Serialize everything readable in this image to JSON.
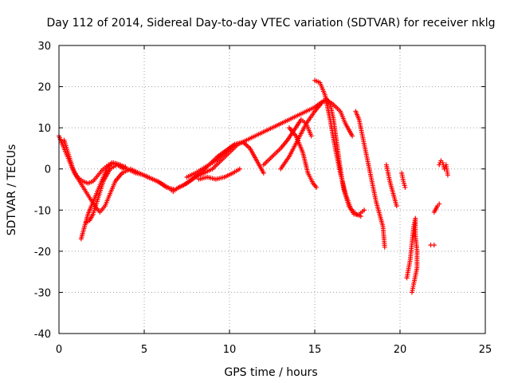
{
  "chart_data": {
    "type": "scatter",
    "title": "Day 112 of 2014, Sidereal Day-to-day VTEC variation (SDTVAR) for receiver nklg",
    "xlabel": "GPS time / hours",
    "ylabel": "SDTVAR / TECUs",
    "xlim": [
      0,
      25
    ],
    "ylim": [
      -40,
      30
    ],
    "xticks": [
      "0",
      "5",
      "10",
      "15",
      "20",
      "25"
    ],
    "yticks": [
      "-40",
      "-30",
      "-20",
      "-10",
      "0",
      "10",
      "20",
      "30"
    ],
    "xtick_values": [
      0,
      5,
      10,
      15,
      20,
      25
    ],
    "ytick_values": [
      -40,
      -30,
      -20,
      -10,
      0,
      10,
      20,
      30
    ],
    "grid": true,
    "marker": "plus",
    "color": "#ff0000",
    "series_tracks": [
      [
        [
          0.0,
          8
        ],
        [
          0.2,
          6
        ],
        [
          0.5,
          3
        ],
        [
          0.8,
          0
        ],
        [
          1.1,
          -2
        ],
        [
          1.4,
          -3
        ],
        [
          1.7,
          -3.5
        ],
        [
          2.0,
          -3
        ],
        [
          2.3,
          -1.5
        ],
        [
          2.6,
          0
        ],
        [
          2.9,
          1
        ],
        [
          3.2,
          1.5
        ],
        [
          3.6,
          1
        ],
        [
          4.0,
          0
        ],
        [
          4.5,
          -1
        ],
        [
          5.0,
          -1.5
        ],
        [
          5.5,
          -2.5
        ],
        [
          6.0,
          -3.5
        ],
        [
          6.4,
          -4.5
        ],
        [
          6.7,
          -5.5
        ],
        [
          7.0,
          -4.5
        ],
        [
          7.5,
          -3.5
        ],
        [
          8.0,
          -2
        ],
        [
          8.5,
          -1
        ],
        [
          9.0,
          0
        ],
        [
          9.5,
          2
        ],
        [
          10.0,
          4
        ],
        [
          10.5,
          6
        ],
        [
          11.0,
          7
        ],
        [
          11.5,
          8
        ],
        [
          12.0,
          9
        ],
        [
          12.5,
          10
        ],
        [
          13.0,
          11
        ],
        [
          13.5,
          12
        ],
        [
          14.0,
          13
        ],
        [
          14.5,
          14
        ],
        [
          15.0,
          15
        ],
        [
          15.5,
          16.5
        ],
        [
          16.0,
          16
        ],
        [
          16.5,
          14
        ],
        [
          16.8,
          11
        ],
        [
          17.2,
          8
        ]
      ],
      [
        [
          0.3,
          7
        ],
        [
          0.6,
          3
        ],
        [
          0.9,
          -1
        ],
        [
          1.2,
          -3
        ],
        [
          1.5,
          -5
        ],
        [
          1.8,
          -7
        ],
        [
          2.1,
          -9
        ],
        [
          2.4,
          -10.5
        ],
        [
          2.7,
          -9
        ],
        [
          3.0,
          -6
        ],
        [
          3.3,
          -3
        ],
        [
          3.7,
          -1
        ],
        [
          4.2,
          0
        ],
        [
          4.7,
          -1
        ],
        [
          5.2,
          -2
        ],
        [
          5.8,
          -3
        ],
        [
          6.3,
          -4.5
        ],
        [
          6.8,
          -5
        ],
        [
          7.3,
          -4
        ],
        [
          7.8,
          -2.5
        ],
        [
          8.3,
          -1
        ],
        [
          8.8,
          1
        ],
        [
          9.3,
          3
        ],
        [
          9.8,
          4.5
        ],
        [
          10.3,
          6
        ],
        [
          10.8,
          6.5
        ],
        [
          11.2,
          5
        ],
        [
          11.6,
          2
        ],
        [
          12.0,
          -1
        ]
      ],
      [
        [
          1.3,
          -17
        ],
        [
          1.5,
          -14
        ],
        [
          1.7,
          -11
        ],
        [
          1.9,
          -9
        ],
        [
          2.2,
          -6
        ],
        [
          2.5,
          -3
        ],
        [
          2.8,
          0
        ],
        [
          3.1,
          1.5
        ],
        [
          3.5,
          1
        ],
        [
          3.9,
          0.5
        ]
      ],
      [
        [
          1.6,
          -13
        ],
        [
          1.8,
          -12.5
        ],
        [
          2.0,
          -11
        ],
        [
          2.3,
          -7
        ],
        [
          2.6,
          -3
        ],
        [
          3.0,
          0
        ],
        [
          3.4,
          1
        ],
        [
          3.8,
          0
        ]
      ],
      [
        [
          7.5,
          -2
        ],
        [
          8.0,
          -1
        ],
        [
          8.4,
          0
        ],
        [
          8.8,
          1
        ],
        [
          9.2,
          2
        ],
        [
          9.6,
          3.5
        ],
        [
          10.0,
          5
        ],
        [
          10.4,
          6
        ],
        [
          10.8,
          6.5
        ]
      ],
      [
        [
          8.2,
          -2.5
        ],
        [
          8.7,
          -2
        ],
        [
          9.2,
          -2.5
        ],
        [
          9.7,
          -2
        ],
        [
          10.2,
          -1
        ],
        [
          10.6,
          0
        ]
      ],
      [
        [
          12.0,
          1
        ],
        [
          12.5,
          3
        ],
        [
          13.0,
          5
        ],
        [
          13.4,
          7
        ],
        [
          13.8,
          9.5
        ],
        [
          14.2,
          12
        ],
        [
          14.5,
          11
        ],
        [
          14.8,
          8
        ]
      ],
      [
        [
          13.0,
          0
        ],
        [
          13.5,
          3
        ],
        [
          14.0,
          7
        ],
        [
          14.5,
          11
        ],
        [
          15.0,
          14
        ],
        [
          15.4,
          16
        ],
        [
          15.7,
          17
        ],
        [
          15.9,
          16
        ],
        [
          16.1,
          12
        ],
        [
          16.3,
          6
        ],
        [
          16.5,
          0
        ],
        [
          16.7,
          -5
        ],
        [
          17.0,
          -9
        ],
        [
          17.3,
          -11
        ],
        [
          17.6,
          -11
        ],
        [
          17.9,
          -10
        ]
      ],
      [
        [
          13.5,
          10
        ],
        [
          13.9,
          8
        ],
        [
          14.3,
          4
        ],
        [
          14.6,
          -1
        ],
        [
          14.9,
          -3.5
        ],
        [
          15.1,
          -4.5
        ]
      ],
      [
        [
          15.0,
          21.5
        ],
        [
          15.3,
          21
        ],
        [
          15.6,
          18
        ],
        [
          15.9,
          12
        ],
        [
          16.2,
          5
        ],
        [
          16.5,
          -1
        ],
        [
          16.8,
          -6
        ],
        [
          17.1,
          -9.5
        ],
        [
          17.4,
          -11
        ],
        [
          17.7,
          -11.5
        ]
      ],
      [
        [
          17.4,
          14
        ],
        [
          17.6,
          12
        ],
        [
          17.8,
          8
        ],
        [
          18.0,
          4
        ],
        [
          18.2,
          0
        ],
        [
          18.4,
          -4
        ],
        [
          18.6,
          -8
        ],
        [
          18.8,
          -11
        ],
        [
          19.0,
          -14
        ],
        [
          19.1,
          -19
        ]
      ],
      [
        [
          19.2,
          1
        ],
        [
          19.4,
          -3
        ],
        [
          19.6,
          -6
        ],
        [
          19.8,
          -9
        ]
      ],
      [
        [
          20.1,
          -1
        ],
        [
          20.2,
          -3
        ],
        [
          20.3,
          -4.5
        ]
      ],
      [
        [
          20.4,
          -26.5
        ],
        [
          20.6,
          -22
        ],
        [
          20.7,
          -18
        ],
        [
          20.8,
          -14
        ],
        [
          20.9,
          -12
        ],
        [
          20.9,
          -16
        ],
        [
          21.0,
          -20
        ],
        [
          21.0,
          -24
        ],
        [
          20.8,
          -28
        ],
        [
          20.7,
          -30
        ]
      ],
      [
        [
          21.8,
          -18.5
        ],
        [
          22.0,
          -18.5
        ]
      ],
      [
        [
          22.0,
          -10.5
        ],
        [
          22.2,
          -9
        ],
        [
          22.3,
          -8.5
        ]
      ],
      [
        [
          22.3,
          1
        ],
        [
          22.4,
          2
        ],
        [
          22.5,
          1.5
        ],
        [
          22.6,
          0
        ],
        [
          22.7,
          1
        ],
        [
          22.8,
          -1.5
        ]
      ]
    ]
  }
}
